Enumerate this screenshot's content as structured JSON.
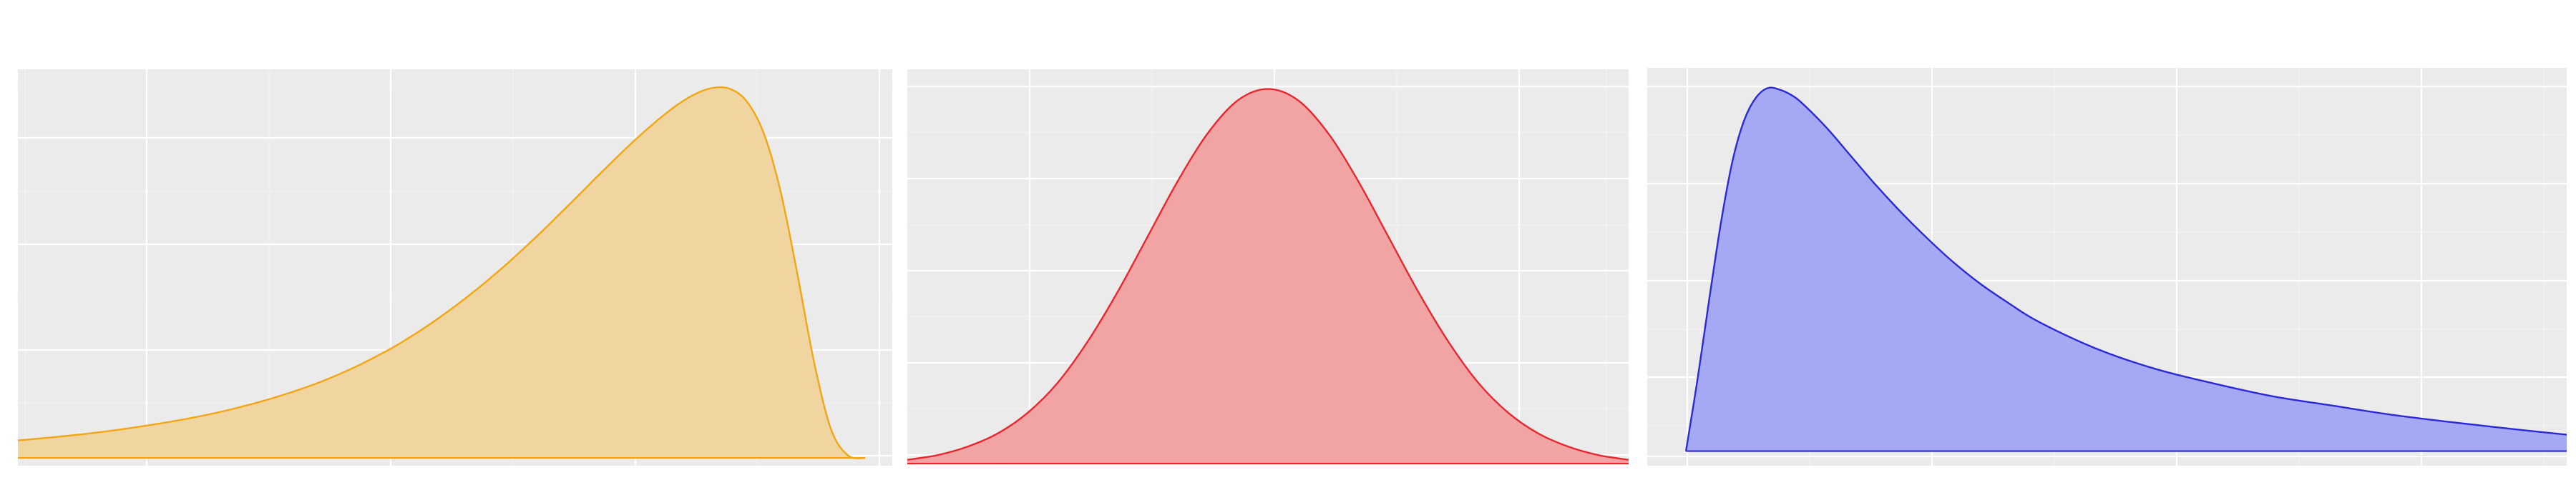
{
  "chart_data": [
    {
      "type": "area",
      "title": "",
      "xlabel": "",
      "ylabel": "",
      "distribution_shape": "left-skewed",
      "x": [
        -5.5,
        -5.0,
        -4.5,
        -4.0,
        -3.5,
        -3.0,
        -2.5,
        -2.0,
        -1.5,
        -1.0,
        -0.5,
        0.0,
        0.25,
        0.5,
        0.75,
        1.0,
        1.25,
        1.5,
        1.75,
        2.0,
        2.25,
        2.5,
        2.75,
        3.0,
        3.25,
        3.5,
        3.75,
        4.0,
        4.25,
        4.5,
        4.75,
        5.0,
        5.25,
        5.5,
        5.75,
        6.0,
        6.25,
        6.5,
        6.75,
        7.0
      ],
      "y": [
        0.045,
        0.053,
        0.062,
        0.073,
        0.086,
        0.101,
        0.119,
        0.141,
        0.167,
        0.198,
        0.236,
        0.281,
        0.307,
        0.335,
        0.365,
        0.397,
        0.431,
        0.467,
        0.505,
        0.545,
        0.586,
        0.629,
        0.672,
        0.716,
        0.759,
        0.801,
        0.841,
        0.878,
        0.911,
        0.937,
        0.952,
        0.95,
        0.918,
        0.837,
        0.687,
        0.473,
        0.243,
        0.072,
        0.006,
        0.0
      ],
      "xlim": [
        -5.5,
        7.4
      ],
      "ylim": [
        -0.02,
        1.0
      ],
      "fill_color": "#F0D5A0",
      "line_color": "#F2A613",
      "grid": true
    },
    {
      "type": "area",
      "title": "",
      "xlabel": "",
      "ylabel": "",
      "distribution_shape": "symmetric",
      "x": [
        -3.0,
        -2.75,
        -2.5,
        -2.25,
        -2.0,
        -1.75,
        -1.5,
        -1.25,
        -1.0,
        -0.75,
        -0.5,
        -0.25,
        0.0,
        0.25,
        0.5,
        0.75,
        1.0,
        1.25,
        1.5,
        1.75,
        2.0,
        2.25,
        2.5,
        2.75,
        3.0
      ],
      "y": [
        0.004,
        0.009,
        0.018,
        0.032,
        0.054,
        0.086,
        0.13,
        0.183,
        0.242,
        0.301,
        0.352,
        0.387,
        0.399,
        0.387,
        0.352,
        0.301,
        0.242,
        0.183,
        0.13,
        0.086,
        0.054,
        0.032,
        0.018,
        0.009,
        0.004
      ],
      "xlim": [
        -3.0,
        3.0
      ],
      "ylim": [
        -0.0,
        0.42
      ],
      "fill_color": "#F2A4A4",
      "line_color": "#E8282E",
      "grid": true
    },
    {
      "type": "area",
      "title": "",
      "xlabel": "",
      "ylabel": "",
      "distribution_shape": "right-skewed",
      "x": [
        0.0,
        0.1,
        0.2,
        0.3,
        0.4,
        0.5,
        0.6,
        0.7,
        0.8,
        0.9,
        1.0,
        1.2,
        1.4,
        1.6,
        1.8,
        2.0,
        2.25,
        2.5,
        2.75,
        3.0,
        3.5,
        4.0,
        4.5,
        5.0,
        5.5,
        6.0,
        6.5,
        7.0,
        7.5
      ],
      "y": [
        0.0,
        0.2,
        0.42,
        0.63,
        0.8,
        0.91,
        0.97,
        0.995,
        0.99,
        0.975,
        0.95,
        0.885,
        0.81,
        0.735,
        0.665,
        0.6,
        0.525,
        0.46,
        0.405,
        0.355,
        0.28,
        0.225,
        0.185,
        0.15,
        0.125,
        0.1,
        0.08,
        0.062,
        0.045
      ],
      "xlim": [
        -0.33,
        7.5
      ],
      "ylim": [
        -0.04,
        1.05
      ],
      "fill_color": "#A5A8F3",
      "line_color": "#2B2BD6",
      "grid": true
    }
  ]
}
